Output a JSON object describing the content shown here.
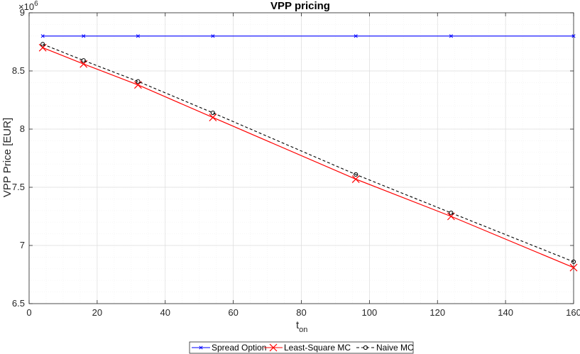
{
  "chart_data": {
    "type": "line",
    "title": "VPP pricing",
    "xlabel_main": "t",
    "xlabel_sub": "on",
    "ylabel": "VPP Price [EUR]",
    "y_exponent_base": "×10",
    "y_exponent_power": "6",
    "xlim": [
      0,
      160
    ],
    "ylim": [
      6.5,
      9
    ],
    "x_ticks": [
      0,
      20,
      40,
      60,
      80,
      100,
      120,
      140,
      160
    ],
    "y_ticks": [
      6.5,
      7,
      7.5,
      8,
      8.5,
      9
    ],
    "x_tick_labels": [
      "0",
      "20",
      "40",
      "60",
      "80",
      "100",
      "120",
      "140",
      "160"
    ],
    "y_tick_labels": [
      "6.5",
      "7",
      "7.5",
      "8",
      "8.5",
      "9"
    ],
    "grid": true,
    "minor_grid": true,
    "legend_position": "bottom-center outside",
    "x": [
      4,
      16,
      32,
      54,
      96,
      124,
      160
    ],
    "series": [
      {
        "name": "Spread Option",
        "color": "#0000ff",
        "marker": "x-small",
        "line": "solid",
        "values": [
          8.8,
          8.8,
          8.8,
          8.8,
          8.8,
          8.8,
          8.8
        ]
      },
      {
        "name": "Least-Square MC",
        "color": "#ff0000",
        "marker": "x-large",
        "line": "solid",
        "values": [
          8.7,
          8.56,
          8.38,
          8.1,
          7.57,
          7.25,
          6.81
        ]
      },
      {
        "name": "Naive MC",
        "color": "#000000",
        "marker": "circle",
        "line": "dashed",
        "values": [
          8.73,
          8.59,
          8.41,
          8.14,
          7.61,
          7.28,
          6.86
        ]
      }
    ]
  }
}
